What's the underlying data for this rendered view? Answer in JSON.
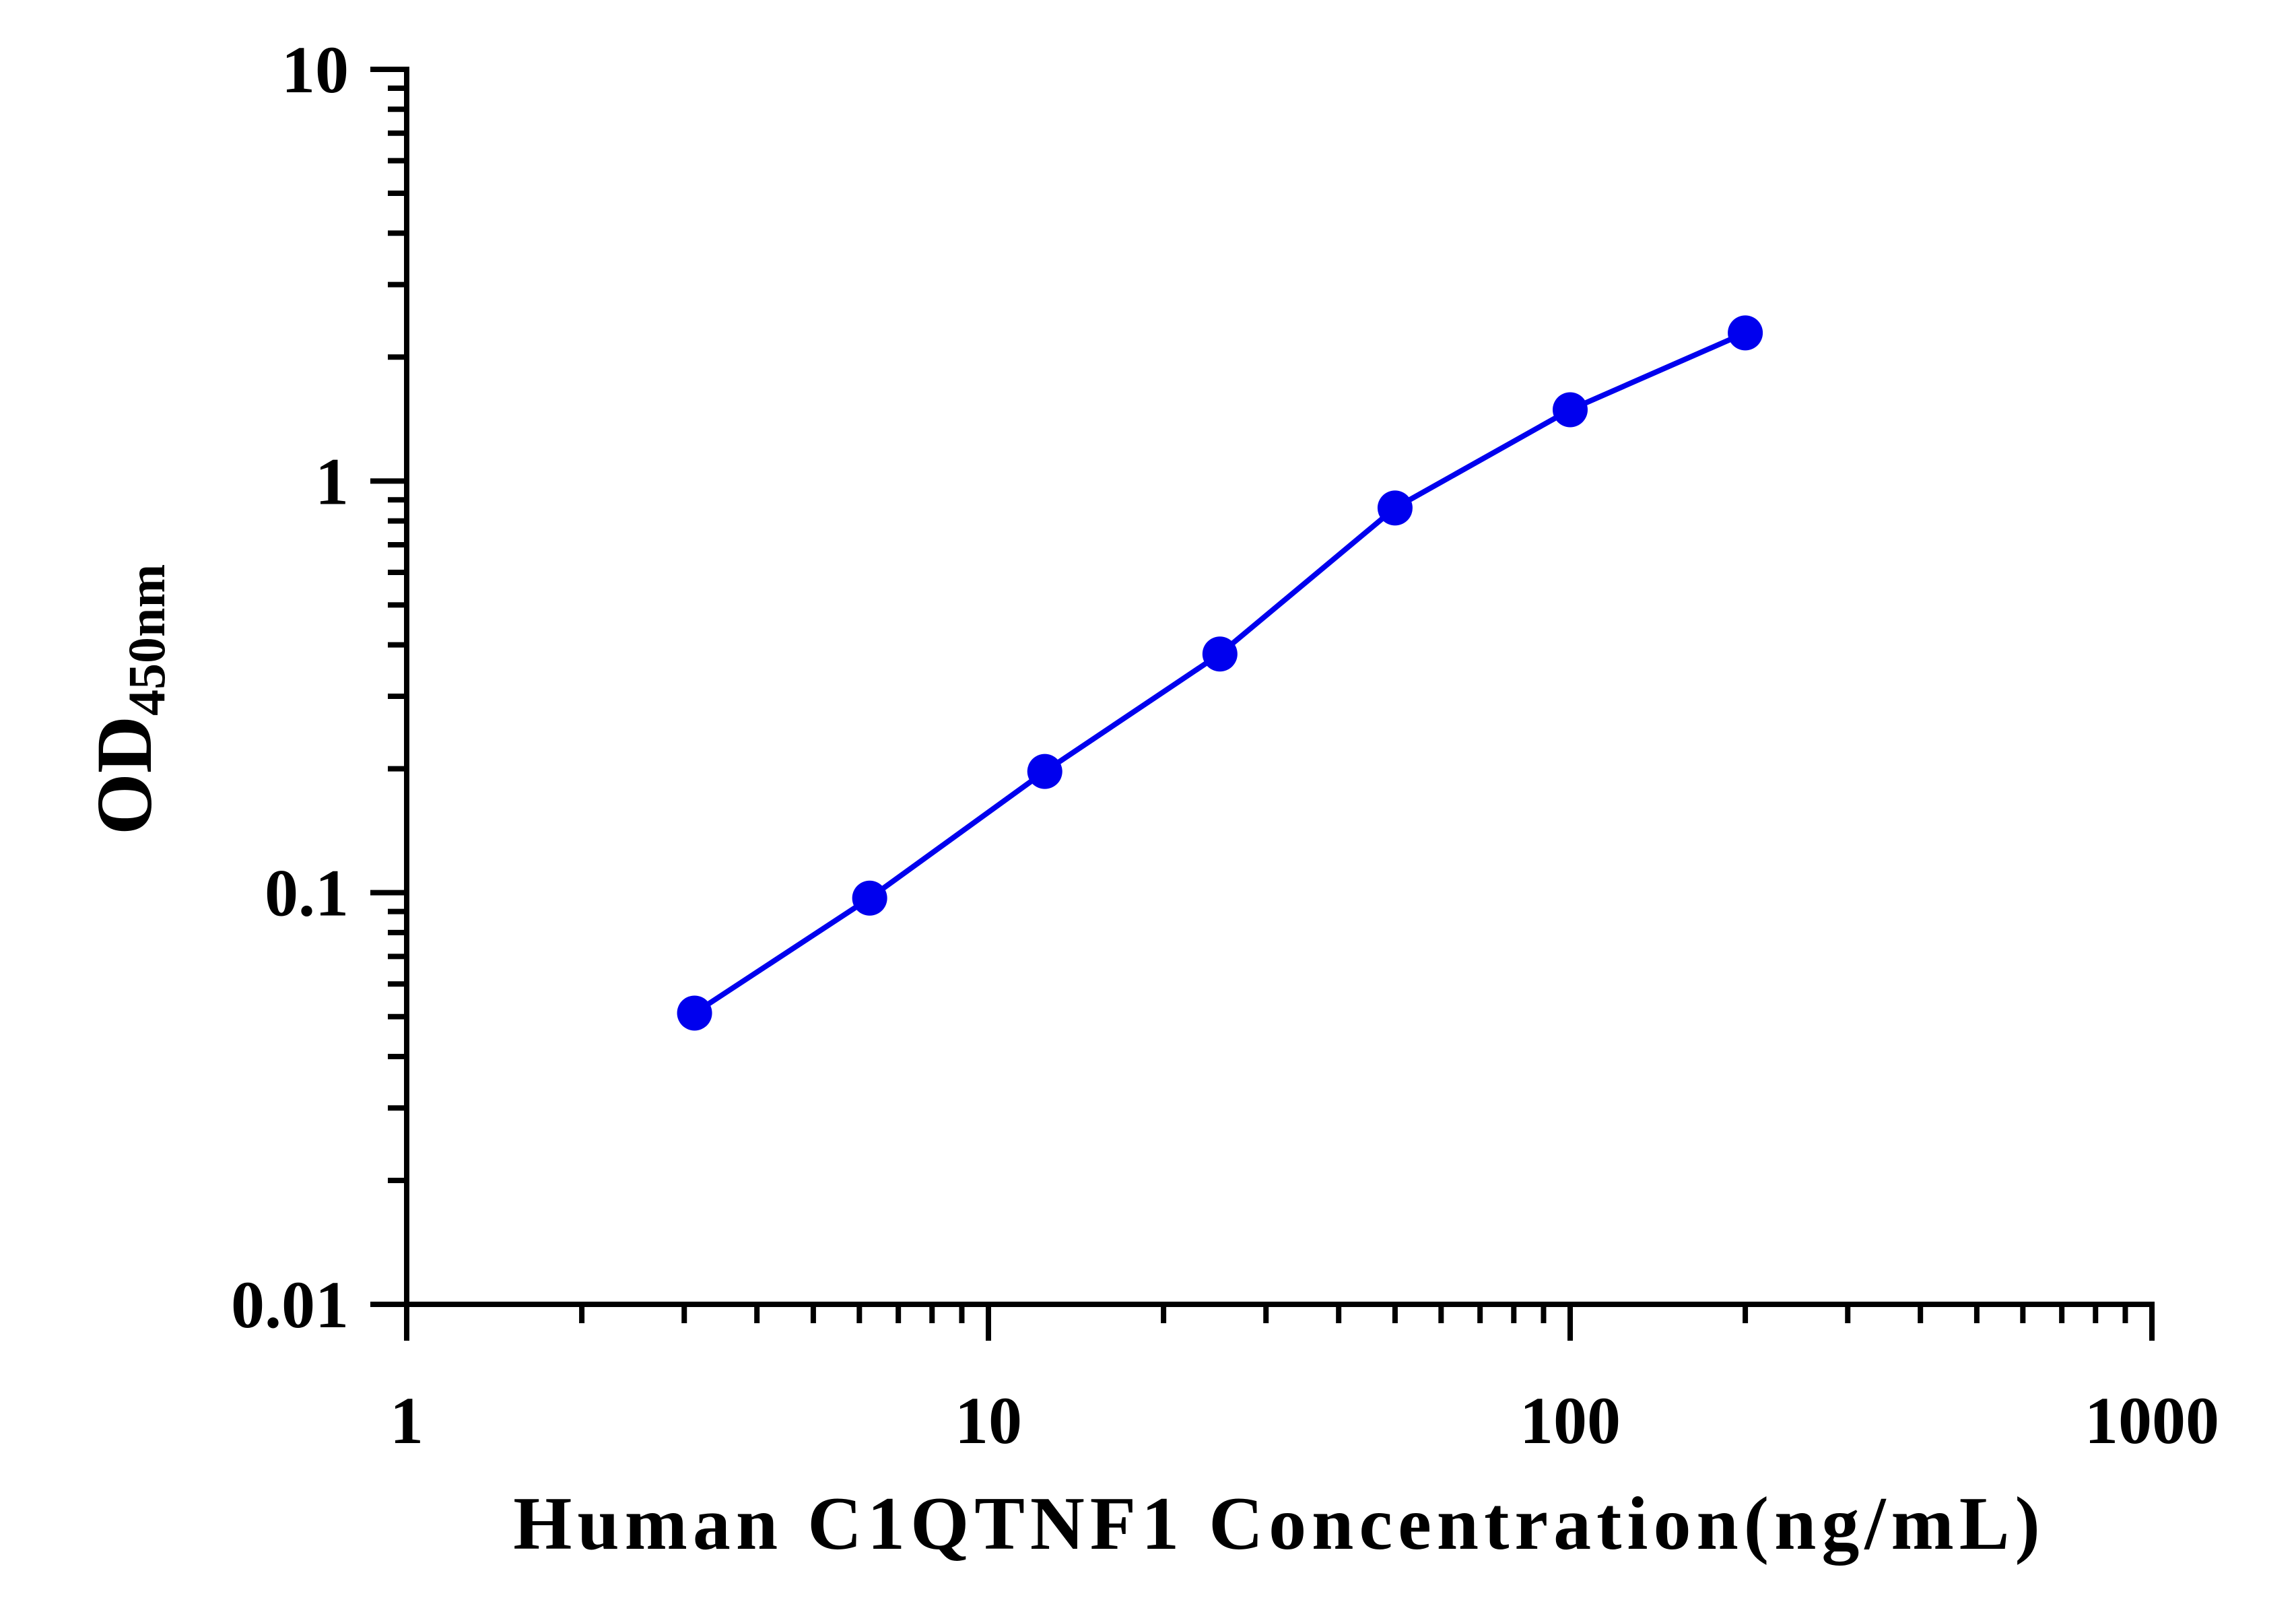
{
  "chart_data": {
    "type": "line",
    "xlabel": "Human C1QTNF1 Concentration(ng/mL)",
    "ylabel": "OD",
    "ylabel_subscript": "450nm",
    "x_scale": "log",
    "y_scale": "log",
    "xlim": [
      1,
      1000
    ],
    "ylim": [
      0.01,
      10
    ],
    "x_ticks": [
      "1",
      "10",
      "100",
      "1000"
    ],
    "y_ticks": [
      "10",
      "1",
      "0.1",
      "0.01"
    ],
    "grid": false,
    "legend": "none",
    "series": [
      {
        "color": "#0000ee",
        "x": [
          3.125,
          6.25,
          12.5,
          25,
          50,
          100,
          200
        ],
        "y": [
          0.051,
          0.097,
          0.197,
          0.38,
          0.86,
          1.49,
          2.29
        ]
      }
    ]
  }
}
